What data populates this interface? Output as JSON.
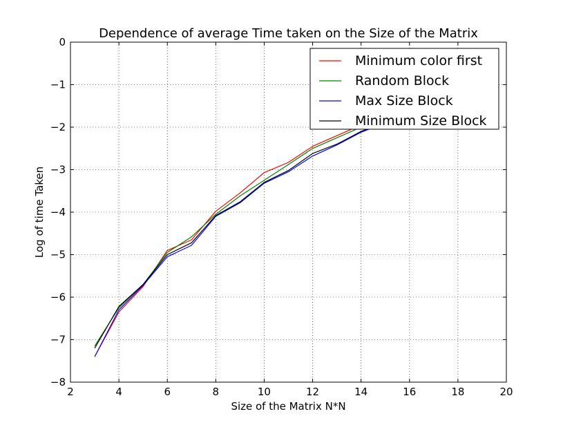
{
  "chart_data": {
    "type": "line",
    "title": "Dependence of average Time taken on the Size of the Matrix",
    "xlabel": "Size of the Matrix N*N",
    "ylabel": "Log of time Taken",
    "xlim": [
      2,
      20
    ],
    "ylim": [
      -8,
      0
    ],
    "xticks": [
      "2",
      "4",
      "6",
      "8",
      "10",
      "12",
      "14",
      "16",
      "18",
      "20"
    ],
    "yticks": [
      "0",
      "−1",
      "−2",
      "−3",
      "−4",
      "−5",
      "−6",
      "−7",
      "−8"
    ],
    "grid": true,
    "legend_position": "top-right",
    "series": [
      {
        "name": "Minimum color first",
        "color": "#ff0000",
        "x": [
          3,
          4,
          5,
          6,
          7,
          8,
          9,
          10,
          11,
          12,
          13,
          14,
          15,
          16,
          17,
          18,
          19
        ],
        "y": [
          -7.4,
          -6.35,
          -5.75,
          -4.9,
          -4.65,
          -3.98,
          -3.55,
          -3.07,
          -2.83,
          -2.45,
          -2.2,
          -1.95,
          -1.75,
          -1.6,
          -1.45,
          -1.3,
          -1.2
        ]
      },
      {
        "name": "Random Block",
        "color": "#008000",
        "x": [
          3,
          4,
          5,
          6,
          7,
          8,
          9,
          10,
          11,
          12,
          13,
          14,
          15,
          16,
          17,
          18,
          19
        ],
        "y": [
          -7.15,
          -6.25,
          -5.7,
          -4.95,
          -4.58,
          -4.05,
          -3.62,
          -3.25,
          -2.88,
          -2.5,
          -2.25,
          -2.0,
          -1.8,
          -1.62,
          -1.48,
          -1.33,
          -1.22
        ]
      },
      {
        "name": "Max Size Block",
        "color": "#0000ff",
        "x": [
          3,
          4,
          5,
          6,
          7,
          8,
          9,
          10,
          11,
          12,
          13,
          14,
          15,
          16,
          17,
          18,
          19
        ],
        "y": [
          -7.4,
          -6.3,
          -5.72,
          -5.05,
          -4.78,
          -4.1,
          -3.78,
          -3.32,
          -3.05,
          -2.68,
          -2.42,
          -2.12,
          -1.9,
          -1.7,
          -1.55,
          -1.4,
          -1.28
        ]
      },
      {
        "name": "Minimum Size Block",
        "color": "#000000",
        "x": [
          3,
          4,
          5,
          6,
          7,
          8,
          9,
          10,
          11,
          12,
          13,
          14,
          15,
          16,
          17,
          18,
          19
        ],
        "y": [
          -7.2,
          -6.22,
          -5.7,
          -5.0,
          -4.72,
          -4.08,
          -3.76,
          -3.3,
          -3.02,
          -2.62,
          -2.4,
          -2.1,
          -1.88,
          -1.68,
          -1.52,
          -1.38,
          -1.26
        ]
      }
    ]
  }
}
